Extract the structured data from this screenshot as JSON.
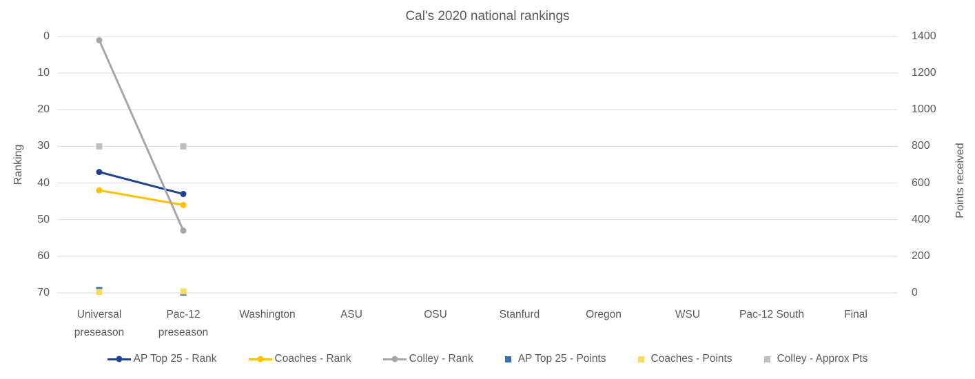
{
  "colors": {
    "background": "#FFFFFF",
    "text": "#595959",
    "gridline": "#D9D9D9"
  },
  "chart_data": {
    "type": "line",
    "title": "Cal's 2020 national rankings",
    "categories": [
      "Universal preseason",
      "Pac-12 preseason",
      "Washington",
      "ASU",
      "OSU",
      "Stanfurd",
      "Oregon",
      "WSU",
      "Pac-12 South",
      "Final"
    ],
    "left_axis": {
      "label": "Ranking",
      "min": 0,
      "max": 70,
      "tick_step": 10,
      "inverted": true
    },
    "right_axis": {
      "label": "Points received",
      "min": 0,
      "max": 1400,
      "tick_step": 200
    },
    "grid": true,
    "legend_position": "bottom",
    "series": [
      {
        "name": "AP Top 25 - Rank",
        "axis": "left",
        "marker": "circle",
        "line": true,
        "color": "#1F4390",
        "values": [
          37,
          43,
          null,
          null,
          null,
          null,
          null,
          null,
          null,
          null
        ]
      },
      {
        "name": "Coaches - Rank",
        "axis": "left",
        "marker": "circle",
        "line": true,
        "color": "#FFC000",
        "values": [
          42,
          46,
          null,
          null,
          null,
          null,
          null,
          null,
          null,
          null
        ]
      },
      {
        "name": "Colley - Rank",
        "axis": "left",
        "marker": "circle",
        "line": true,
        "color": "#A6A6A6",
        "values": [
          1,
          53,
          null,
          null,
          null,
          null,
          null,
          null,
          null,
          null
        ]
      },
      {
        "name": "AP Top 25 - Points",
        "axis": "right",
        "marker": "square",
        "line": false,
        "color": "#2E75B6",
        "values": [
          15,
          2,
          null,
          null,
          null,
          null,
          null,
          null,
          null,
          null
        ]
      },
      {
        "name": "Coaches - Points",
        "axis": "right",
        "marker": "square",
        "line": false,
        "color": "#FFD966",
        "values": [
          5,
          8,
          null,
          null,
          null,
          null,
          null,
          null,
          null,
          null
        ]
      },
      {
        "name": "Colley - Approx Pts",
        "axis": "right",
        "marker": "square",
        "line": false,
        "color": "#BFBFBF",
        "values": [
          800,
          800,
          null,
          null,
          null,
          null,
          null,
          null,
          null,
          null
        ]
      }
    ]
  }
}
